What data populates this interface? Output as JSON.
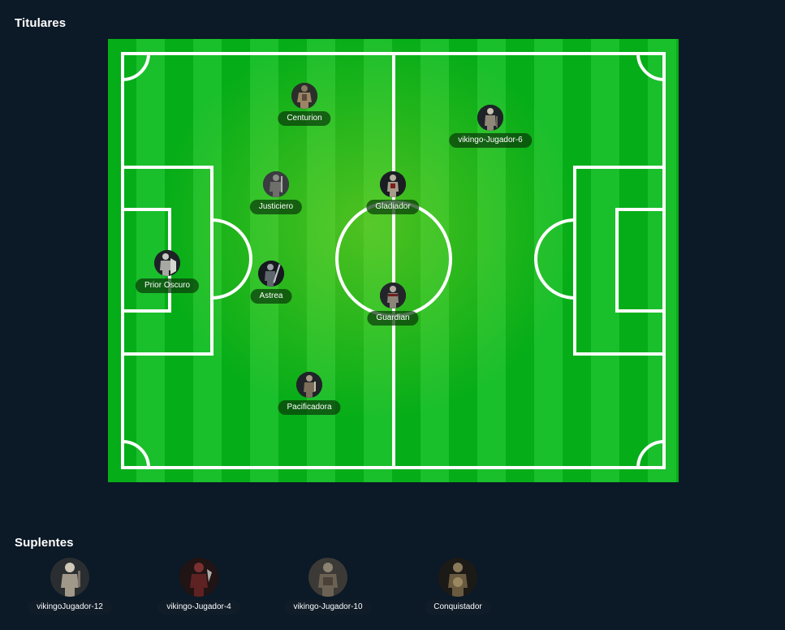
{
  "starters": {
    "title": "Titulares",
    "players": [
      {
        "name": "Centurion",
        "icon": "centurion-avatar-icon"
      },
      {
        "name": "vikingo-Jugador-6",
        "icon": "vikingo-avatar-icon"
      },
      {
        "name": "Justiciero",
        "icon": "justiciero-avatar-icon"
      },
      {
        "name": "Gladiador",
        "icon": "gladiador-avatar-icon"
      },
      {
        "name": "Prior Oscuro",
        "icon": "prior-oscuro-avatar-icon"
      },
      {
        "name": "Astrea",
        "icon": "astrea-avatar-icon"
      },
      {
        "name": "Guardian",
        "icon": "guardian-avatar-icon"
      },
      {
        "name": "Pacificadora",
        "icon": "pacificadora-avatar-icon"
      }
    ]
  },
  "substitutes": {
    "title": "Suplentes",
    "players": [
      {
        "name": "vikingoJugador-12",
        "icon": "vikingo-avatar-icon"
      },
      {
        "name": "vikingo-Jugador-4",
        "icon": "vikingo-avatar-icon"
      },
      {
        "name": "vikingo-Jugador-10",
        "icon": "vikingo-avatar-icon"
      },
      {
        "name": "Conquistador",
        "icon": "conquistador-avatar-icon"
      }
    ]
  },
  "colors": {
    "background": "#0c1927",
    "pitch_dark": "#05ad18",
    "pitch_light": "#1abf2c",
    "lines": "#ffffff"
  }
}
